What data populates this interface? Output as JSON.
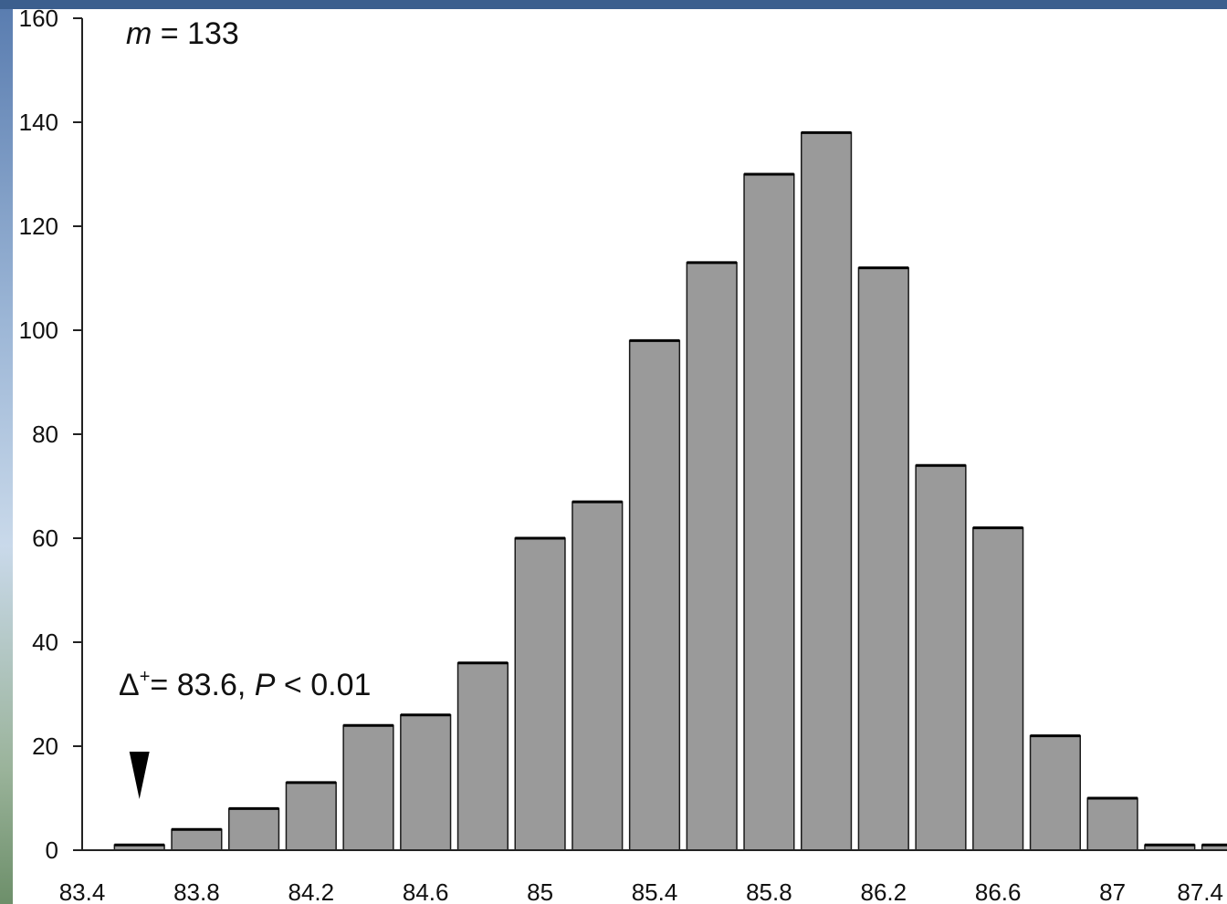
{
  "chart_data": {
    "type": "bar",
    "categories": [
      "83.6",
      "83.8",
      "84.0",
      "84.2",
      "84.4",
      "84.6",
      "84.8",
      "85.0",
      "85.2",
      "85.4",
      "85.6",
      "85.8",
      "86.0",
      "86.2",
      "86.4",
      "86.6",
      "86.8",
      "87.0",
      "87.2",
      "87.4"
    ],
    "values": [
      1,
      4,
      8,
      13,
      24,
      26,
      36,
      60,
      67,
      98,
      113,
      130,
      138,
      112,
      74,
      62,
      22,
      10,
      1,
      1
    ],
    "xlim": [
      83.4,
      87.4
    ],
    "ylim": [
      0,
      160
    ],
    "x_ticks": [
      "83.4",
      "83.8",
      "84.2",
      "84.6",
      "85",
      "85.4",
      "85.8",
      "86.2",
      "86.6",
      "87",
      "87.4"
    ],
    "y_ticks": [
      "0",
      "20",
      "40",
      "60",
      "80",
      "100",
      "120",
      "140",
      "160"
    ],
    "annotations": {
      "m_label": "m = 133",
      "delta_label": "Δ+= 83.6, P < 0.01",
      "arrow_marker_x": 83.6
    },
    "bar_color": "#9a9a9a",
    "grid": false,
    "legend": "none",
    "title": "",
    "xlabel": "",
    "ylabel": ""
  }
}
